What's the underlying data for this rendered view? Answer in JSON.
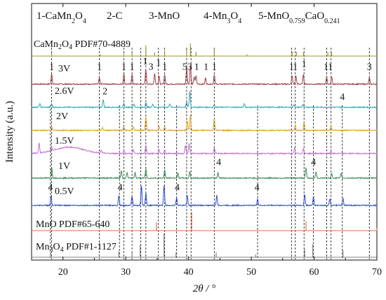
{
  "chart_data": {
    "type": "line",
    "title": "",
    "xlabel": "2θ / °",
    "ylabel": "Intensity (a.u.)",
    "xlim": [
      15,
      70
    ],
    "x_ticks": [
      20,
      30,
      40,
      50,
      60,
      70
    ],
    "grid": false,
    "phase_legend": [
      {
        "num": "1",
        "label": "CaMn2O4"
      },
      {
        "num": "2",
        "label": "C"
      },
      {
        "num": "3",
        "label": "MnO"
      },
      {
        "num": "4",
        "label": "Mn3O4"
      },
      {
        "num": "5",
        "label": "MnO0.759CaO0.241"
      }
    ],
    "series": [
      {
        "name": "CaMn2O4 PDF#70-4889",
        "color": "#9a9a2a",
        "kind": "reference",
        "peaks": [
          [
            18.2,
            0.25
          ],
          [
            26,
            0.12
          ],
          [
            29.7,
            0.18
          ],
          [
            31.0,
            0.25
          ],
          [
            33.2,
            0.85
          ],
          [
            34.6,
            0.3
          ],
          [
            36.2,
            0.45
          ],
          [
            39.7,
            0.5
          ],
          [
            40.3,
            1.0
          ],
          [
            41.2,
            0.35
          ],
          [
            44.1,
            0.55
          ],
          [
            49.3,
            0.15
          ],
          [
            56.5,
            0.35
          ],
          [
            57.2,
            0.35
          ],
          [
            58.3,
            0.3
          ],
          [
            62.2,
            0.3
          ],
          [
            62.8,
            0.3
          ]
        ]
      },
      {
        "name": "3V",
        "color": "#a0404a",
        "kind": "pattern",
        "peaks": [
          [
            18.2,
            0.5
          ],
          [
            25.8,
            0.3
          ],
          [
            29.7,
            0.5
          ],
          [
            31.0,
            0.45
          ],
          [
            33.2,
            0.7
          ],
          [
            34.6,
            0.5
          ],
          [
            35.3,
            0.4
          ],
          [
            36.2,
            0.45
          ],
          [
            39.7,
            0.8
          ],
          [
            40.3,
            0.9
          ],
          [
            40.9,
            0.35
          ],
          [
            41.2,
            0.4
          ],
          [
            42.7,
            0.3
          ],
          [
            44.1,
            0.45
          ],
          [
            56.5,
            0.4
          ],
          [
            57.1,
            0.4
          ],
          [
            58.3,
            0.45
          ],
          [
            62.0,
            0.35
          ],
          [
            62.8,
            0.35
          ],
          [
            68.8,
            0.3
          ]
        ]
      },
      {
        "name": "2.6V",
        "color": "#3aa8b8",
        "kind": "pattern",
        "peaks": [
          [
            16.3,
            0.2
          ],
          [
            18.2,
            0.2
          ],
          [
            26.4,
            0.45
          ],
          [
            29.7,
            0.2
          ],
          [
            31.3,
            0.2
          ],
          [
            33.2,
            0.25
          ],
          [
            34.3,
            0.2
          ],
          [
            37.0,
            0.2
          ],
          [
            39.7,
            0.3
          ],
          [
            40.2,
            0.9
          ],
          [
            44.1,
            0.15
          ],
          [
            48.9,
            0.2
          ],
          [
            56.8,
            0.15
          ],
          [
            58.2,
            0.15
          ]
        ]
      },
      {
        "name": "2V",
        "color": "#e0a020",
        "kind": "pattern",
        "peaks": [
          [
            18.2,
            0.2
          ],
          [
            26.3,
            0.15
          ],
          [
            29.7,
            0.2
          ],
          [
            31.2,
            0.2
          ],
          [
            33.2,
            0.7
          ],
          [
            35.3,
            0.2
          ],
          [
            36.2,
            0.2
          ],
          [
            39.8,
            0.5
          ],
          [
            40.3,
            0.8
          ],
          [
            44.1,
            0.6
          ],
          [
            57.0,
            0.3
          ],
          [
            58.4,
            0.4
          ],
          [
            62.7,
            0.25
          ]
        ]
      },
      {
        "name": "1.5V",
        "color": "#c070d0",
        "kind": "pattern",
        "hump": [
          21.0,
          0.35
        ],
        "peaks": [
          [
            16.2,
            0.55
          ],
          [
            18.2,
            0.2
          ],
          [
            26.1,
            0.15
          ],
          [
            29.7,
            0.2
          ],
          [
            31.2,
            0.2
          ],
          [
            33.2,
            0.45
          ],
          [
            35.3,
            0.2
          ],
          [
            36.2,
            0.2
          ],
          [
            39.5,
            0.45
          ],
          [
            40.1,
            0.55
          ],
          [
            44.1,
            0.3
          ],
          [
            56.9,
            0.3
          ],
          [
            58.3,
            0.3
          ],
          [
            62.7,
            0.2
          ]
        ]
      },
      {
        "name": "1V",
        "color": "#3a8a5a",
        "kind": "pattern",
        "peaks": [
          [
            18.2,
            0.6
          ],
          [
            29.3,
            0.4
          ],
          [
            30.2,
            0.3
          ],
          [
            31.5,
            0.3
          ],
          [
            33.2,
            0.5
          ],
          [
            36.2,
            0.45
          ],
          [
            38.3,
            0.25
          ],
          [
            40.2,
            0.35
          ],
          [
            44.7,
            0.3
          ],
          [
            58.7,
            0.55
          ],
          [
            60.3,
            0.35
          ],
          [
            62.8,
            0.25
          ],
          [
            64.3,
            0.25
          ]
        ]
      },
      {
        "name": "0.5V",
        "color": "#3050c8",
        "kind": "pattern",
        "peaks": [
          [
            18.1,
            0.4
          ],
          [
            28.9,
            0.45
          ],
          [
            31.0,
            0.4
          ],
          [
            32.5,
            0.9
          ],
          [
            33.2,
            0.55
          ],
          [
            36.1,
            0.9
          ],
          [
            38.1,
            0.35
          ],
          [
            39.8,
            0.45
          ],
          [
            44.5,
            0.45
          ],
          [
            51.0,
            0.3
          ],
          [
            58.5,
            0.5
          ],
          [
            59.9,
            0.4
          ],
          [
            62.5,
            0.3
          ],
          [
            64.6,
            0.3
          ]
        ]
      },
      {
        "name": "MnO PDF#65-640",
        "color": "#e07040",
        "kind": "reference",
        "peaks": [
          [
            34.9,
            0.45
          ],
          [
            40.5,
            1.0
          ],
          [
            58.7,
            0.5
          ],
          [
            70.0,
            0.12
          ]
        ]
      },
      {
        "name": "Mn3O4 PDF#1-1127",
        "color": "#808080",
        "kind": "reference",
        "peaks": [
          [
            18.0,
            0.12
          ],
          [
            28.9,
            0.25
          ],
          [
            31.0,
            0.2
          ],
          [
            32.3,
            0.5
          ],
          [
            36.1,
            1.0
          ],
          [
            38.0,
            0.2
          ],
          [
            44.4,
            0.2
          ],
          [
            50.7,
            0.12
          ],
          [
            58.5,
            0.35
          ],
          [
            59.8,
            0.55
          ],
          [
            64.6,
            0.3
          ]
        ]
      }
    ],
    "annotations": [
      {
        "text": "1",
        "x": 18.2,
        "series": "3V"
      },
      {
        "text": "1",
        "x": 25.8,
        "series": "3V"
      },
      {
        "text": "1",
        "x": 29.7,
        "series": "3V"
      },
      {
        "text": "1",
        "x": 31.0,
        "series": "3V"
      },
      {
        "text": "1",
        "x": 33.1,
        "series": "3V",
        "dy": -8
      },
      {
        "text": "3",
        "x": 34.0,
        "series": "3V"
      },
      {
        "text": "1",
        "x": 35.2,
        "series": "3V",
        "dy": -6
      },
      {
        "text": "1",
        "x": 36.2,
        "series": "3V"
      },
      {
        "text": "5",
        "x": 39.4,
        "series": "3V"
      },
      {
        "text": "3",
        "x": 40.2,
        "series": "3V"
      },
      {
        "text": "1",
        "x": 41.3,
        "series": "3V"
      },
      {
        "text": "1",
        "x": 42.8,
        "series": "3V"
      },
      {
        "text": "1",
        "x": 44.1,
        "series": "3V"
      },
      {
        "text": "1",
        "x": 56.4,
        "series": "3V"
      },
      {
        "text": "1",
        "x": 57.0,
        "series": "3V"
      },
      {
        "text": "1",
        "x": 58.4,
        "series": "3V",
        "dy": -4
      },
      {
        "text": "1",
        "x": 61.9,
        "series": "3V"
      },
      {
        "text": "1",
        "x": 62.6,
        "series": "3V"
      },
      {
        "text": "3",
        "x": 68.8,
        "series": "3V"
      },
      {
        "text": "2",
        "x": 26.7,
        "series": "2.6V"
      },
      {
        "text": "4",
        "x": 64.5,
        "series": "2V",
        "dy": -24
      },
      {
        "text": "4",
        "x": 44.8,
        "series": "1V"
      },
      {
        "text": "4",
        "x": 59.9,
        "series": "1V"
      },
      {
        "text": "4",
        "x": 18.0,
        "series": "0.5V"
      },
      {
        "text": "4",
        "x": 29.1,
        "series": "0.5V"
      },
      {
        "text": "4",
        "x": 38.2,
        "series": "0.5V"
      },
      {
        "text": "4",
        "x": 50.9,
        "series": "0.5V"
      }
    ],
    "guide_lines_x": [
      18.2,
      25.8,
      29.7,
      31.0,
      32.4,
      33.2,
      35.2,
      36.2,
      39.7,
      40.4,
      44.1,
      56.4,
      57.0,
      58.4,
      62.0,
      62.7,
      64.5,
      68.8,
      18.0,
      29.0,
      38.1,
      51.0,
      59.9
    ]
  }
}
